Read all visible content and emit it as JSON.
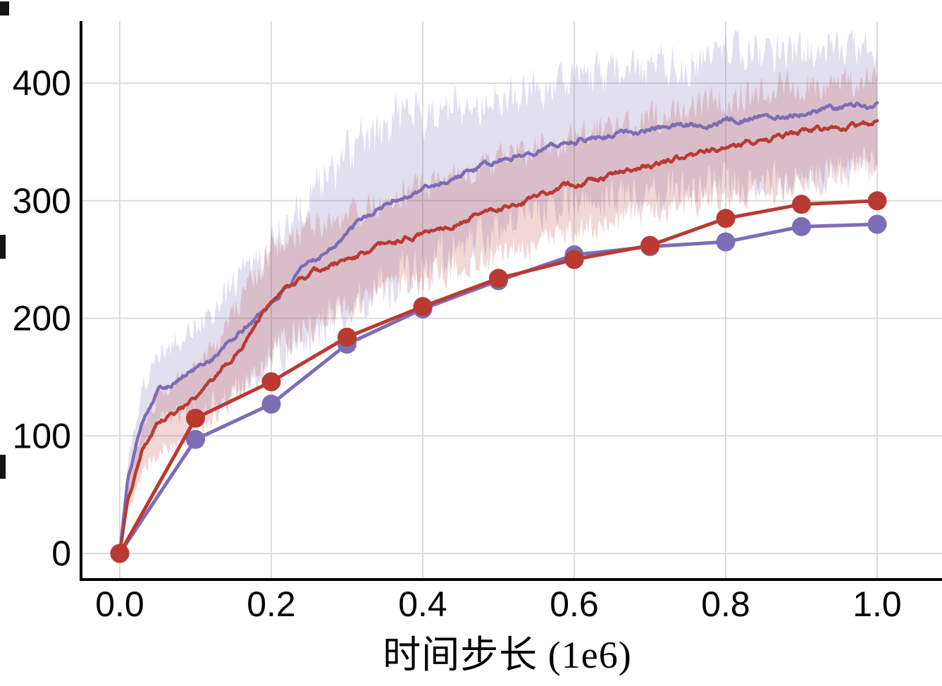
{
  "chart_data": {
    "type": "line",
    "title": "",
    "xlabel": "时间步长 (1e6)",
    "ylabel": "",
    "xlim": [
      0,
      1.0
    ],
    "ylim": [
      0,
      400
    ],
    "grid": true,
    "legend_position": "none",
    "colors": {
      "purple": "#7d6cb6",
      "red": "#b93a31",
      "purple_band": "rgba(125,108,182,0.22)",
      "red_band": "rgba(185,58,49,0.20)",
      "grid": "#dcdcdc",
      "axis": "#000000"
    },
    "x_ticks": [
      {
        "v": 0.0,
        "label": "0.0"
      },
      {
        "v": 0.2,
        "label": "0.2"
      },
      {
        "v": 0.4,
        "label": "0.4"
      },
      {
        "v": 0.6,
        "label": "0.6"
      },
      {
        "v": 0.8,
        "label": "0.8"
      },
      {
        "v": 1.0,
        "label": "1.0"
      }
    ],
    "y_ticks": [
      {
        "v": 0,
        "label": "0"
      },
      {
        "v": 100,
        "label": "100"
      },
      {
        "v": 200,
        "label": "200"
      },
      {
        "v": 300,
        "label": "300"
      },
      {
        "v": 400,
        "label": "400"
      }
    ],
    "series": [
      {
        "name": "purple-train-curve",
        "style": "noisy-band",
        "color": "#7d6cb6",
        "band_color": "rgba(125,108,182,0.22)",
        "seed": 101,
        "x": [
          0,
          0.01,
          0.03,
          0.05,
          0.08,
          0.1,
          0.13,
          0.16,
          0.2,
          0.24,
          0.28,
          0.32,
          0.36,
          0.4,
          0.45,
          0.5,
          0.55,
          0.6,
          0.65,
          0.7,
          0.75,
          0.8,
          0.85,
          0.9,
          0.95,
          1.0
        ],
        "y": [
          0,
          60,
          115,
          140,
          150,
          157,
          170,
          188,
          213,
          240,
          262,
          283,
          300,
          310,
          322,
          333,
          344,
          352,
          357,
          361,
          365,
          368,
          372,
          375,
          379,
          382
        ],
        "band": [
          2,
          18,
          26,
          30,
          33,
          36,
          40,
          46,
          52,
          58,
          63,
          67,
          68,
          64,
          58,
          55,
          52,
          51,
          52,
          53,
          54,
          56,
          56,
          55,
          52,
          48
        ]
      },
      {
        "name": "red-train-curve",
        "style": "noisy-band",
        "color": "#b93a31",
        "band_color": "rgba(185,58,49,0.20)",
        "seed": 202,
        "x": [
          0,
          0.01,
          0.03,
          0.05,
          0.08,
          0.1,
          0.13,
          0.16,
          0.2,
          0.24,
          0.28,
          0.32,
          0.36,
          0.4,
          0.45,
          0.5,
          0.55,
          0.6,
          0.65,
          0.7,
          0.75,
          0.8,
          0.85,
          0.9,
          0.95,
          1.0
        ],
        "y": [
          0,
          45,
          90,
          110,
          122,
          130,
          150,
          175,
          218,
          232,
          245,
          255,
          263,
          272,
          283,
          294,
          304,
          314,
          322,
          330,
          338,
          345,
          352,
          358,
          363,
          368
        ],
        "band": [
          2,
          12,
          20,
          24,
          26,
          28,
          32,
          38,
          44,
          42,
          40,
          40,
          40,
          40,
          40,
          40,
          40,
          40,
          40,
          40,
          40,
          42,
          42,
          40,
          38,
          36
        ]
      },
      {
        "name": "purple-eval-curve",
        "style": "markers",
        "color": "#7d6cb6",
        "x": [
          0,
          0.1,
          0.2,
          0.3,
          0.4,
          0.5,
          0.6,
          0.7,
          0.8,
          0.9,
          1.0
        ],
        "y": [
          0,
          97,
          127,
          178,
          208,
          232,
          254,
          261,
          265,
          278,
          280
        ]
      },
      {
        "name": "red-eval-curve",
        "style": "markers",
        "color": "#b93a31",
        "x": [
          0,
          0.1,
          0.2,
          0.3,
          0.4,
          0.5,
          0.6,
          0.7,
          0.8,
          0.9,
          1.0
        ],
        "y": [
          0,
          115,
          146,
          184,
          210,
          234,
          250,
          262,
          285,
          297,
          300
        ]
      }
    ]
  }
}
